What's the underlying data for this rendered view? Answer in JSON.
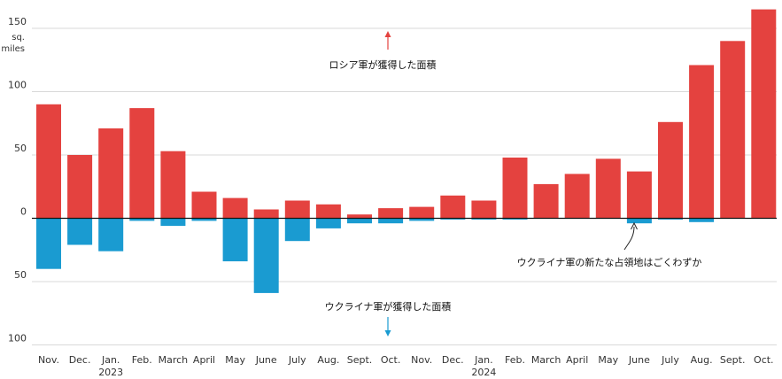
{
  "chart_data": {
    "type": "bar",
    "unit_label_line1": "sq.",
    "unit_label_line2": "miles",
    "categories": [
      "Nov.",
      "Dec.",
      "Jan.",
      "Feb.",
      "March",
      "April",
      "May",
      "June",
      "July",
      "Aug.",
      "Sept.",
      "Oct.",
      "Nov.",
      "Dec.",
      "Jan.",
      "Feb.",
      "March",
      "April",
      "May",
      "June",
      "July",
      "Aug.",
      "Sept.",
      "Oct."
    ],
    "year_labels": [
      {
        "index": 2,
        "label": "2023"
      },
      {
        "index": 14,
        "label": "2024"
      }
    ],
    "y_ticks": [
      {
        "value": 150,
        "label": "150"
      },
      {
        "value": 100,
        "label": "100"
      },
      {
        "value": 50,
        "label": "50"
      },
      {
        "value": 0,
        "label": "0"
      },
      {
        "value": -50,
        "label": "50"
      },
      {
        "value": -100,
        "label": "100"
      }
    ],
    "ylim": [
      -100,
      150
    ],
    "series": [
      {
        "key": "russia",
        "color": "#e4423f",
        "values": [
          90,
          50,
          71,
          87,
          53,
          21,
          16,
          7,
          14,
          11,
          3,
          8,
          9,
          18,
          14,
          48,
          27,
          35,
          47,
          37,
          76,
          121,
          140,
          165
        ]
      },
      {
        "key": "ukraine",
        "color": "#1a9bd1",
        "values": [
          -40,
          -21,
          -26,
          -2,
          -6,
          -2,
          -34,
          -59,
          -18,
          -8,
          -4,
          -4,
          -2,
          -1,
          -1,
          -1,
          0,
          0,
          0,
          -4,
          -1,
          -3,
          0,
          0
        ]
      }
    ],
    "annotations": {
      "russia": "ロシア軍が獲得した面積",
      "ukraine": "ウクライナ軍が獲得した面積",
      "minor": "ウクライナ軍の新たな占領地はごくわずか"
    }
  }
}
